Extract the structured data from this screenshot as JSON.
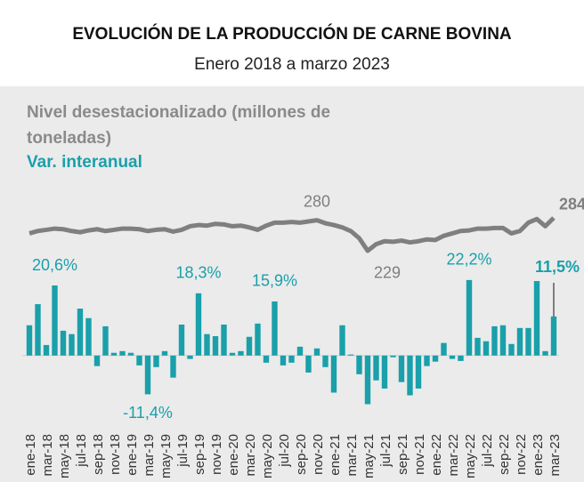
{
  "chart_data": {
    "type": "combo",
    "title": "EVOLUCIÓN DE LA PRODUCCIÓN DE CARNE BOVINA",
    "subtitle": "Enero 2018 a marzo 2023",
    "categories": [
      "ene-18",
      null,
      "mar-18",
      null,
      "may-18",
      null,
      "jul-18",
      null,
      "sep-18",
      null,
      "nov-18",
      null,
      "ene-19",
      null,
      "mar-19",
      null,
      "may-19",
      null,
      "jul-19",
      null,
      "sep-19",
      null,
      "nov-19",
      null,
      "ene-20",
      null,
      "mar-20",
      null,
      "may-20",
      null,
      "jul-20",
      null,
      "sep-20",
      null,
      "nov-20",
      null,
      "ene-21",
      null,
      "mar-21",
      null,
      "may-21",
      null,
      "jul-21",
      null,
      "sep-21",
      null,
      "nov-21",
      null,
      "ene-22",
      null,
      "mar-22",
      null,
      "may-22",
      null,
      "jul-22",
      null,
      "sep-22",
      null,
      "nov-22",
      null,
      "ene-23",
      null,
      "mar-23"
    ],
    "series": [
      {
        "name": "Nivel desestacionalizado (millones de toneladas)",
        "color": "#7f7f7f",
        "axis": "y2",
        "values": [
          258,
          262,
          264,
          266,
          265,
          262,
          260,
          263,
          265,
          262,
          264,
          266,
          266,
          265,
          262,
          264,
          265,
          261,
          264,
          270,
          272,
          271,
          274,
          273,
          270,
          271,
          268,
          264,
          271,
          276,
          276,
          277,
          276,
          278,
          280,
          275,
          272,
          268,
          262,
          250,
          229,
          240,
          245,
          244,
          246,
          243,
          245,
          248,
          247,
          254,
          258,
          262,
          263,
          266,
          266,
          267,
          267,
          258,
          262,
          276,
          282,
          270,
          284
        ],
        "value_labels": [
          null,
          null,
          null,
          null,
          null,
          null,
          null,
          null,
          null,
          null,
          null,
          null,
          null,
          null,
          null,
          null,
          null,
          null,
          null,
          null,
          null,
          null,
          null,
          null,
          null,
          null,
          null,
          null,
          null,
          null,
          null,
          null,
          null,
          null,
          "280",
          null,
          null,
          null,
          null,
          null,
          "229",
          null,
          null,
          null,
          null,
          null,
          null,
          null,
          null,
          null,
          null,
          null,
          null,
          null,
          null,
          null,
          null,
          null,
          null,
          null,
          null,
          null,
          "284"
        ]
      },
      {
        "name": "Var. interanual",
        "color": "#19a0aa",
        "values": [
          8.9,
          15.1,
          3.1,
          20.6,
          7.3,
          6.3,
          13.8,
          11,
          -3.1,
          8.6,
          0.8,
          1.3,
          0.8,
          -2.9,
          -11.4,
          -3.4,
          1.3,
          -6.5,
          9.1,
          -1,
          18.3,
          6.3,
          5.7,
          9.1,
          0.8,
          1.3,
          5.5,
          9.4,
          -2.1,
          15.9,
          -2.9,
          -2.1,
          2.6,
          -5,
          2.1,
          -3.4,
          -10.9,
          8.9,
          0.3,
          -5.5,
          -14.3,
          -7.3,
          -9.7,
          -0.5,
          -7.8,
          -11.7,
          -9.7,
          -3.1,
          -1.8,
          3.7,
          -1,
          -1.6,
          22.2,
          5.2,
          4.2,
          8.6,
          8.9,
          3.4,
          8.1,
          8.1,
          21.9,
          1.3,
          11.5
        ],
        "value_labels": [
          null,
          null,
          null,
          "20,6%",
          null,
          null,
          null,
          null,
          null,
          null,
          null,
          null,
          null,
          null,
          "-11,4%",
          null,
          null,
          null,
          null,
          null,
          "18,3%",
          null,
          null,
          null,
          null,
          null,
          null,
          null,
          null,
          "15,9%",
          null,
          null,
          null,
          null,
          null,
          null,
          null,
          null,
          null,
          null,
          null,
          null,
          null,
          null,
          null,
          null,
          null,
          null,
          null,
          null,
          null,
          null,
          "22,2%",
          null,
          null,
          null,
          null,
          null,
          null,
          null,
          null,
          null,
          "11,5%"
        ]
      }
    ],
    "ylim": [
      -16,
      24
    ],
    "y2lim": [
      200,
      300
    ]
  }
}
